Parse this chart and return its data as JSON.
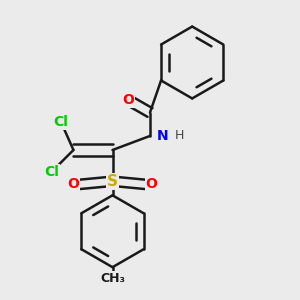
{
  "background_color": "#ebebeb",
  "bond_color": "#1a1a1a",
  "atom_colors": {
    "O": "#ff0000",
    "N": "#0000ff",
    "Cl": "#00cc00",
    "S": "#ccaa00",
    "C": "#1a1a1a",
    "H": "#444444"
  },
  "figsize": [
    3.0,
    3.0
  ],
  "dpi": 100
}
